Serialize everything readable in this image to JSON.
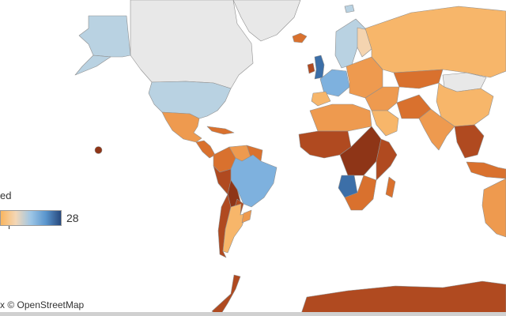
{
  "legend": {
    "title": "ed",
    "max_label": "28",
    "gradient_colors": [
      "#f9b55f",
      "#f4d7b6",
      "#9dc6e6",
      "#5a95cd",
      "#27497d"
    ]
  },
  "attribution": "x © OpenStreetMap",
  "colors": {
    "no_data": "#e8e8e8",
    "light_orange": "#f7b66a",
    "orange": "#ee9a4f",
    "dark_orange": "#d9712e",
    "red_brown": "#b04a20",
    "dark_red": "#8e3517",
    "light_blue": "#b9d2e2",
    "medium_blue": "#7eb1de",
    "dark_blue": "#3c6fa8",
    "pale_peach": "#f4d4b0"
  },
  "regions": [
    {
      "name": "Greenland",
      "fill": "no_data"
    },
    {
      "name": "Canada",
      "fill": "no_data"
    },
    {
      "name": "Alaska",
      "fill": "light_blue"
    },
    {
      "name": "United States",
      "fill": "light_blue"
    },
    {
      "name": "Mexico",
      "fill": "orange"
    },
    {
      "name": "Central America",
      "fill": "dark_orange"
    },
    {
      "name": "Caribbean",
      "fill": "dark_orange"
    },
    {
      "name": "Colombia",
      "fill": "dark_orange"
    },
    {
      "name": "Venezuela",
      "fill": "orange"
    },
    {
      "name": "Guianas",
      "fill": "dark_orange"
    },
    {
      "name": "Brazil",
      "fill": "medium_blue"
    },
    {
      "name": "Peru",
      "fill": "red_brown"
    },
    {
      "name": "Bolivia",
      "fill": "dark_red"
    },
    {
      "name": "Paraguay",
      "fill": "red_brown"
    },
    {
      "name": "Chile",
      "fill": "red_brown"
    },
    {
      "name": "Argentina",
      "fill": "light_orange"
    },
    {
      "name": "Uruguay",
      "fill": "orange"
    },
    {
      "name": "Antarctica",
      "fill": "red_brown"
    },
    {
      "name": "Iceland",
      "fill": "dark_orange"
    },
    {
      "name": "United Kingdom",
      "fill": "dark_blue"
    },
    {
      "name": "Ireland",
      "fill": "red_brown"
    },
    {
      "name": "Scandinavia",
      "fill": "light_blue"
    },
    {
      "name": "Finland",
      "fill": "pale_peach"
    },
    {
      "name": "Western Europe",
      "fill": "medium_blue"
    },
    {
      "name": "Iberia",
      "fill": "light_orange"
    },
    {
      "name": "Eastern Europe",
      "fill": "orange"
    },
    {
      "name": "Russia",
      "fill": "light_orange"
    },
    {
      "name": "Kazakhstan",
      "fill": "dark_orange"
    },
    {
      "name": "Middle East",
      "fill": "orange"
    },
    {
      "name": "Saudi Arabia",
      "fill": "light_orange"
    },
    {
      "name": "Iran",
      "fill": "dark_orange"
    },
    {
      "name": "India",
      "fill": "orange"
    },
    {
      "name": "China",
      "fill": "light_orange"
    },
    {
      "name": "Mongolia",
      "fill": "no_data"
    },
    {
      "name": "Southeast Asia",
      "fill": "red_brown"
    },
    {
      "name": "Indonesia",
      "fill": "dark_orange"
    },
    {
      "name": "Australia",
      "fill": "orange"
    },
    {
      "name": "North Africa",
      "fill": "orange"
    },
    {
      "name": "West Africa",
      "fill": "red_brown"
    },
    {
      "name": "Central Africa",
      "fill": "dark_red"
    },
    {
      "name": "East Africa",
      "fill": "red_brown"
    },
    {
      "name": "Angola",
      "fill": "dark_blue"
    },
    {
      "name": "Southern Africa",
      "fill": "dark_orange"
    },
    {
      "name": "Madagascar",
      "fill": "dark_orange"
    },
    {
      "name": "Hawaii",
      "fill": "dark_red"
    }
  ]
}
